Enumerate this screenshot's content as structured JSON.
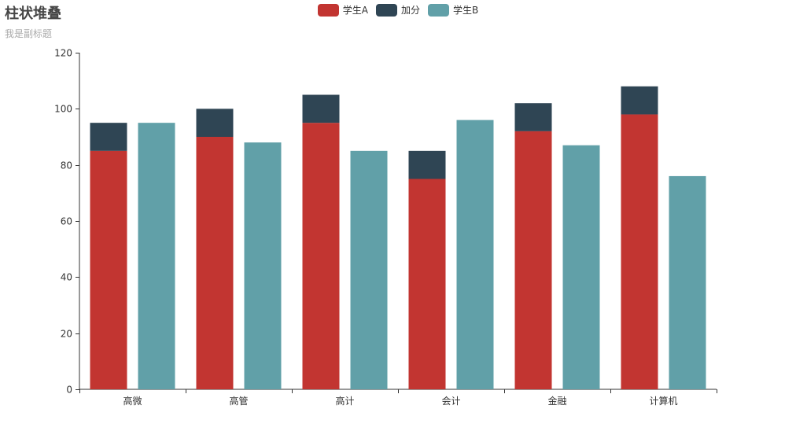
{
  "chart_data": {
    "type": "bar",
    "title": "柱状堆叠",
    "subtitle": "我是副标题",
    "categories": [
      "高微",
      "高管",
      "高计",
      "会计",
      "金融",
      "计算机"
    ],
    "series": [
      {
        "name": "学生A",
        "stack": "A",
        "color": "#c23531",
        "values": [
          85,
          90,
          95,
          75,
          92,
          98
        ]
      },
      {
        "name": "加分",
        "stack": "A",
        "color": "#2f4554",
        "values": [
          10,
          10,
          10,
          10,
          10,
          10
        ]
      },
      {
        "name": "学生B",
        "stack": "B",
        "color": "#61a0a8",
        "values": [
          95,
          88,
          85,
          96,
          87,
          76
        ]
      }
    ],
    "ylim": [
      0,
      120
    ],
    "yticks": [
      0,
      20,
      40,
      60,
      80,
      100,
      120
    ],
    "grid": false,
    "legend_position": "top-center"
  }
}
